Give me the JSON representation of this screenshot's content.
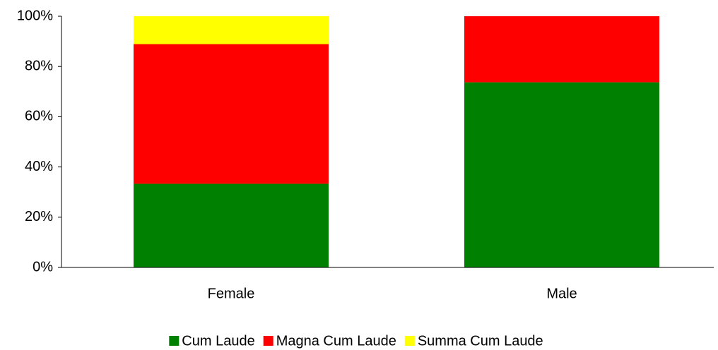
{
  "chart_data": {
    "type": "stacked_bar",
    "categories": [
      "Female",
      "Male"
    ],
    "series": [
      {
        "name": "Cum Laude",
        "color": "#008000",
        "values": [
          33.3,
          73.7
        ]
      },
      {
        "name": "Magna Cum Laude",
        "color": "#ff0000",
        "values": [
          55.6,
          26.3
        ]
      },
      {
        "name": "Summa Cum Laude",
        "color": "#ffff00",
        "values": [
          11.1,
          0
        ]
      }
    ],
    "ylim": [
      0,
      100
    ],
    "yticks": [
      {
        "value": 0,
        "label": "0%"
      },
      {
        "value": 20,
        "label": "20%"
      },
      {
        "value": 40,
        "label": "40%"
      },
      {
        "value": 60,
        "label": "60%"
      },
      {
        "value": 80,
        "label": "80%"
      },
      {
        "value": 100,
        "label": "100%"
      }
    ],
    "legend": "bottom"
  }
}
